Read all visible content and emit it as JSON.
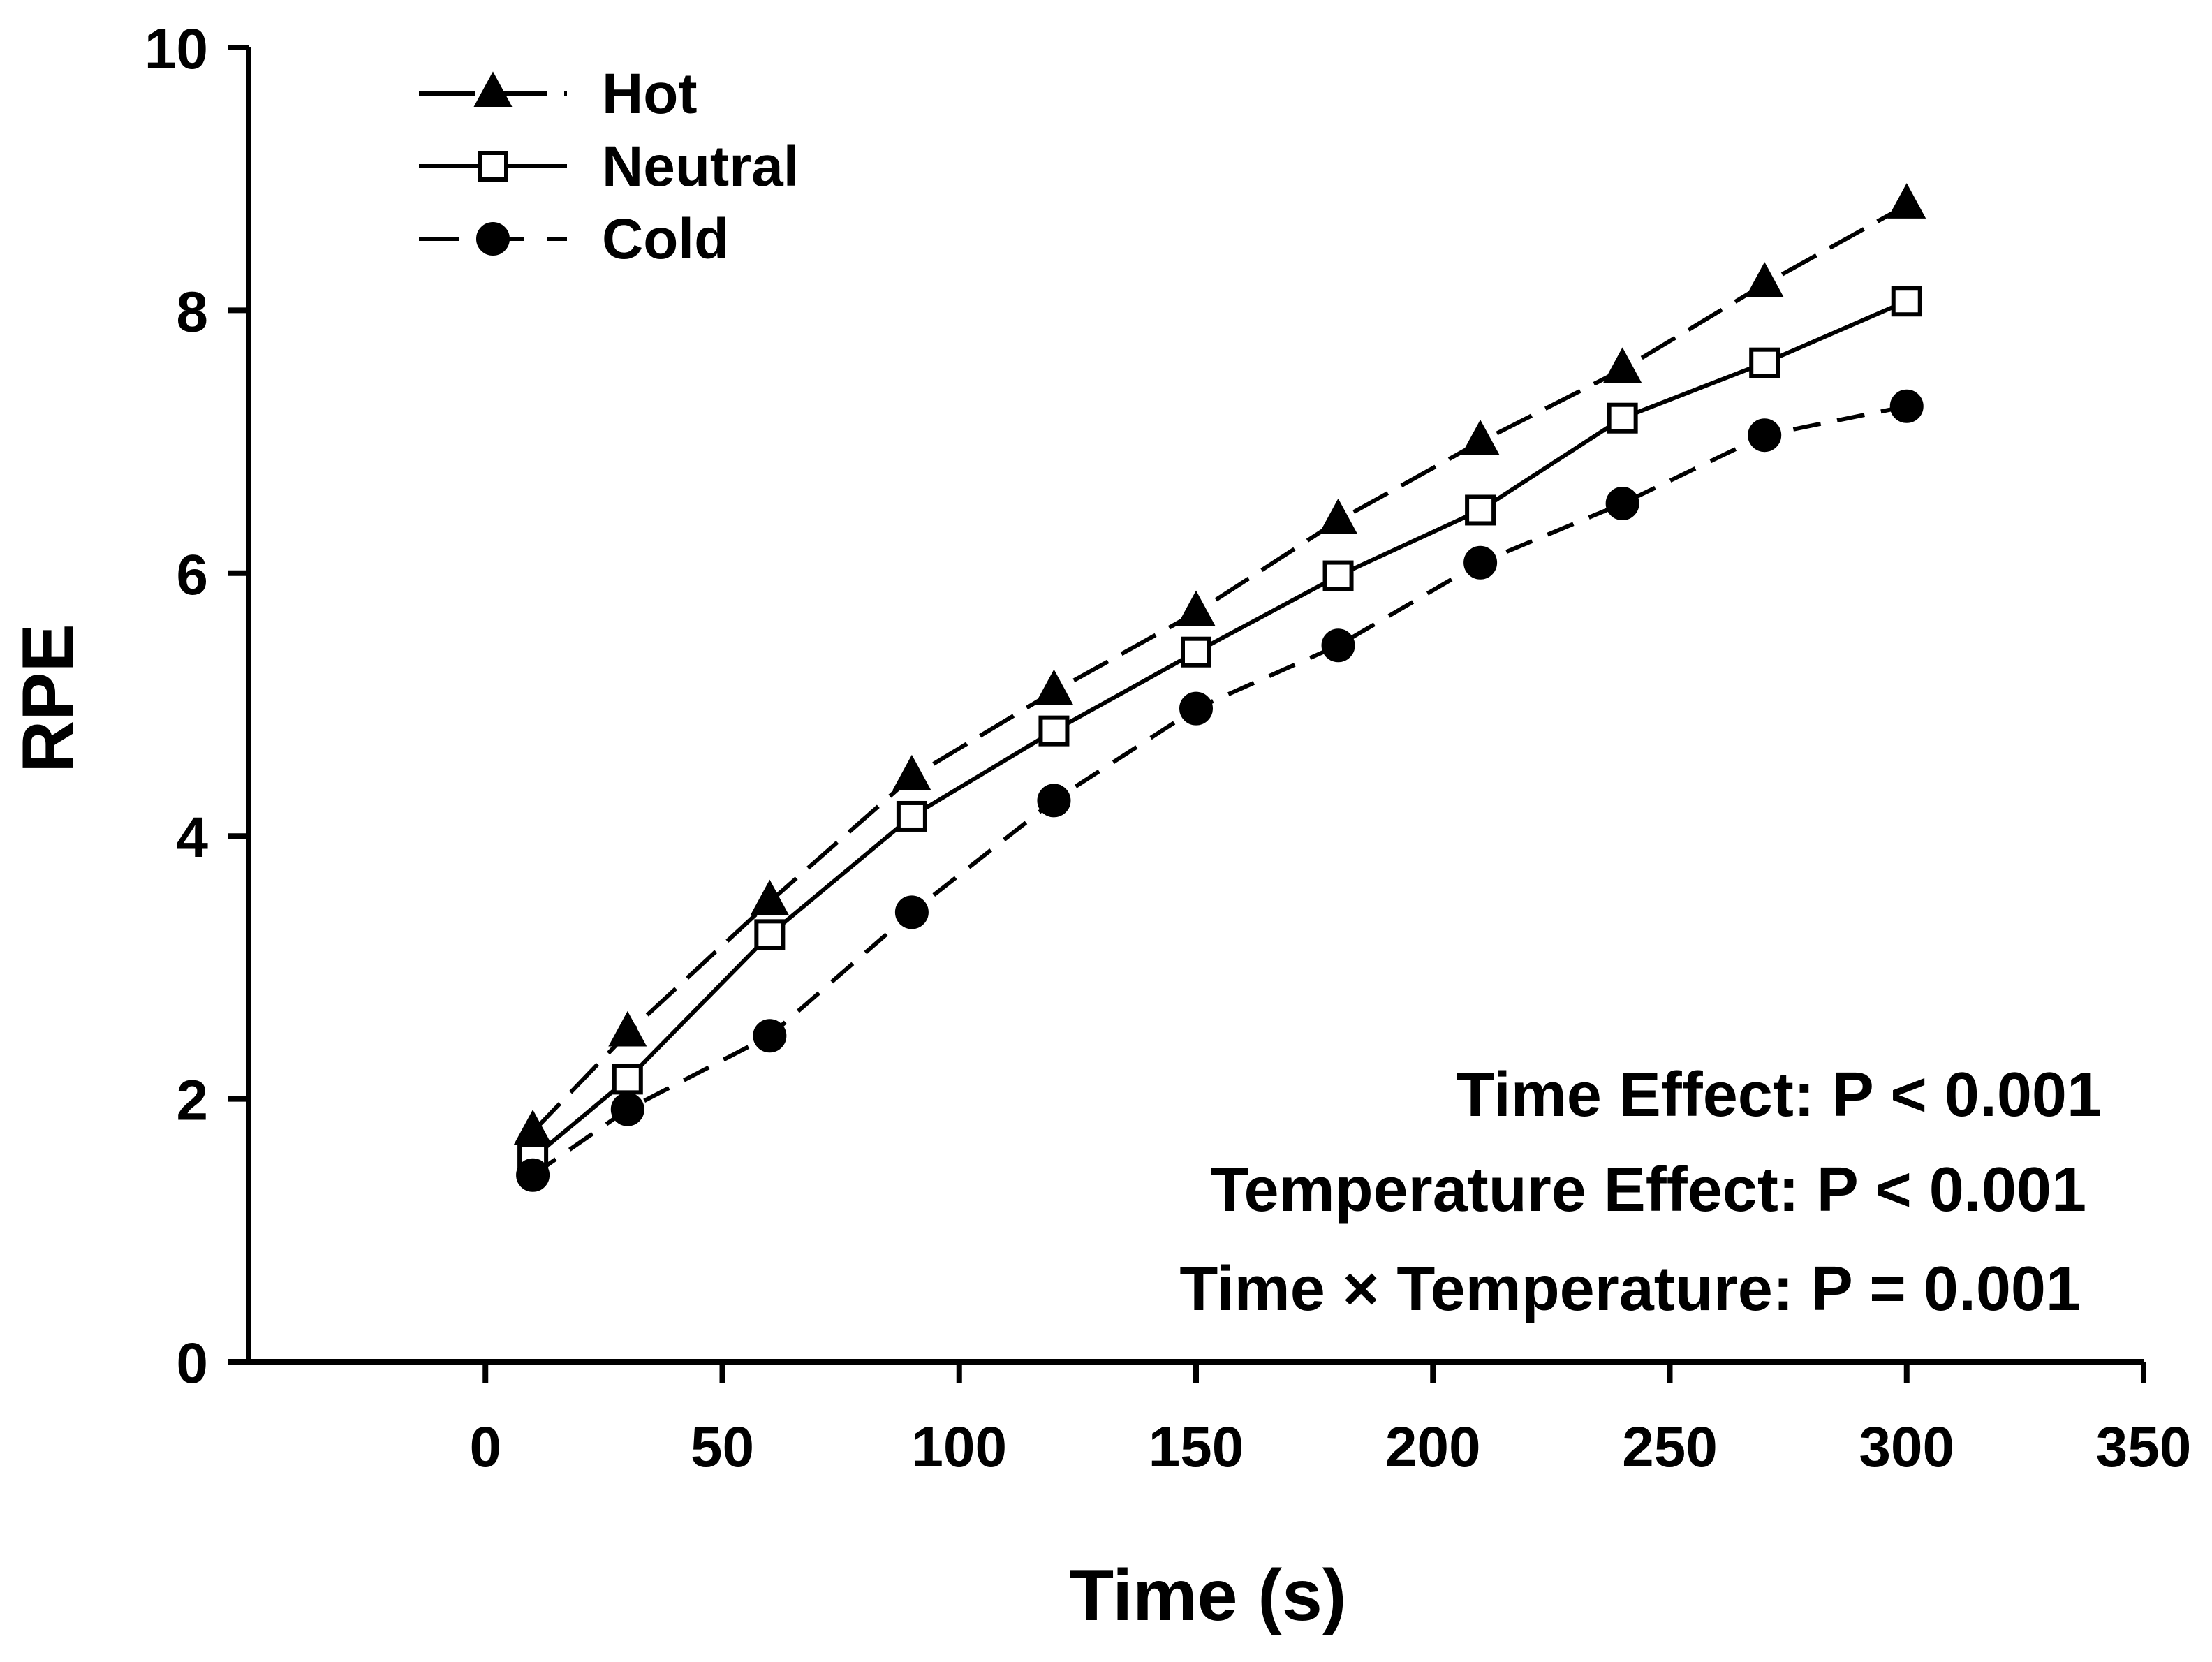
{
  "chart_data": {
    "type": "line",
    "xlabel": "Time (s)",
    "ylabel": "RPE",
    "xlim": [
      -50,
      350
    ],
    "ylim": [
      0,
      10
    ],
    "x_ticks": [
      0,
      50,
      100,
      150,
      200,
      250,
      300,
      350
    ],
    "y_ticks": [
      0,
      2,
      4,
      6,
      8,
      10
    ],
    "grid": false,
    "legend_position": "top-left",
    "x": [
      10,
      30,
      60,
      90,
      120,
      150,
      180,
      210,
      240,
      270,
      300
    ],
    "series": [
      {
        "name": "Hot",
        "marker": "filled-triangle",
        "line_style": "long-dash",
        "values": [
          1.75,
          2.5,
          3.5,
          4.45,
          5.1,
          5.7,
          6.4,
          7.0,
          7.55,
          8.2,
          8.8
        ]
      },
      {
        "name": "Neutral",
        "marker": "open-square",
        "line_style": "solid",
        "values": [
          1.55,
          2.15,
          3.25,
          4.15,
          4.8,
          5.4,
          5.98,
          6.48,
          7.18,
          7.6,
          8.07
        ]
      },
      {
        "name": "Cold",
        "marker": "filled-circle",
        "line_style": "dash",
        "values": [
          1.42,
          1.92,
          2.48,
          3.42,
          4.27,
          4.97,
          5.45,
          6.08,
          6.53,
          7.05,
          7.27
        ]
      }
    ],
    "annotations": [
      "Time Effect: P < 0.001",
      "Temperature Effect: P < 0.001",
      "Time × Temperature: P = 0.001"
    ]
  },
  "colors": {
    "ink": "#000000",
    "background": "#ffffff"
  }
}
